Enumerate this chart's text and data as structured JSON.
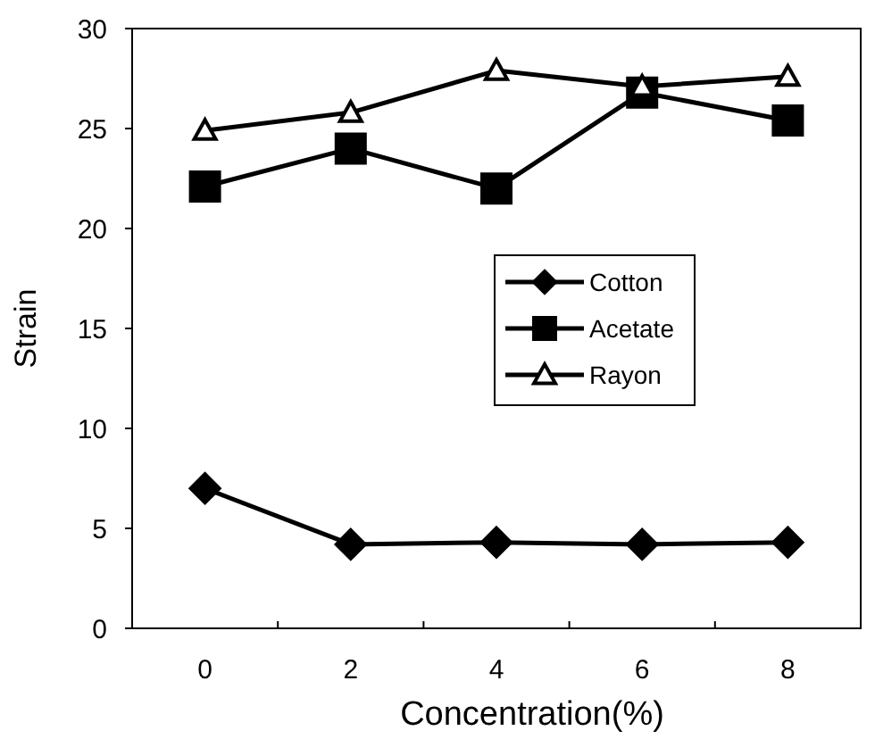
{
  "chart_data": {
    "type": "line",
    "xlabel": "Concentration(%)",
    "ylabel": "Strain",
    "categories": [
      "0",
      "2",
      "4",
      "6",
      "8"
    ],
    "series": [
      {
        "name": "Cotton",
        "color": "#000000",
        "marker": "diamond",
        "values": [
          7.0,
          4.2,
          4.3,
          4.2,
          4.3
        ]
      },
      {
        "name": "Acetate",
        "color": "#000000",
        "marker": "square",
        "values": [
          22.1,
          24.0,
          22.0,
          26.8,
          25.4
        ]
      },
      {
        "name": "Rayon",
        "color": "#000000",
        "marker": "triangle",
        "values": [
          24.9,
          25.8,
          27.9,
          27.1,
          27.6
        ]
      }
    ],
    "ylim": [
      0,
      30
    ],
    "yticks": [
      0,
      5,
      10,
      15,
      20,
      25,
      30
    ],
    "grid": false,
    "legend": "right"
  }
}
